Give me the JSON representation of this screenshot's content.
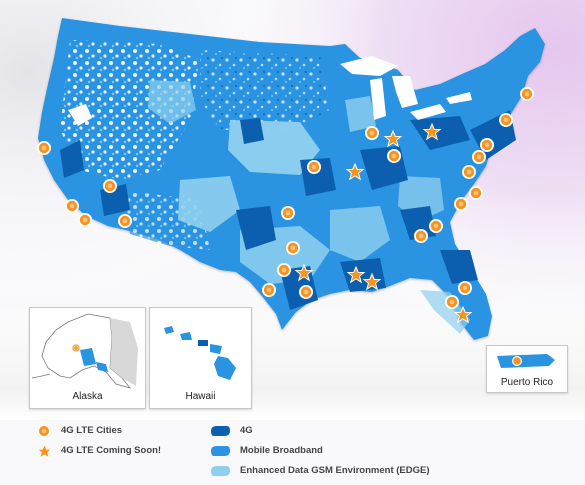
{
  "map": {
    "insets": {
      "alaska": "Alaska",
      "hawaii": "Hawaii",
      "puerto_rico": "Puerto Rico"
    }
  },
  "legend": {
    "lte_cities": "4G LTE Cities",
    "lte_soon": "4G LTE Coming Soon!",
    "fourg": "4G",
    "mobile_broadband": "Mobile Broadband",
    "edge": "Enhanced Data GSM Environment (EDGE)"
  },
  "colors": {
    "fourg": "#0b5fae",
    "mobile_broadband": "#2a93e2",
    "edge": "#8fd0ef",
    "lte_city": "#f6921e",
    "lte_soon": "#f7941d"
  },
  "icons": {
    "lte_city": "circle-marker-icon",
    "lte_soon": "star-marker-icon"
  }
}
